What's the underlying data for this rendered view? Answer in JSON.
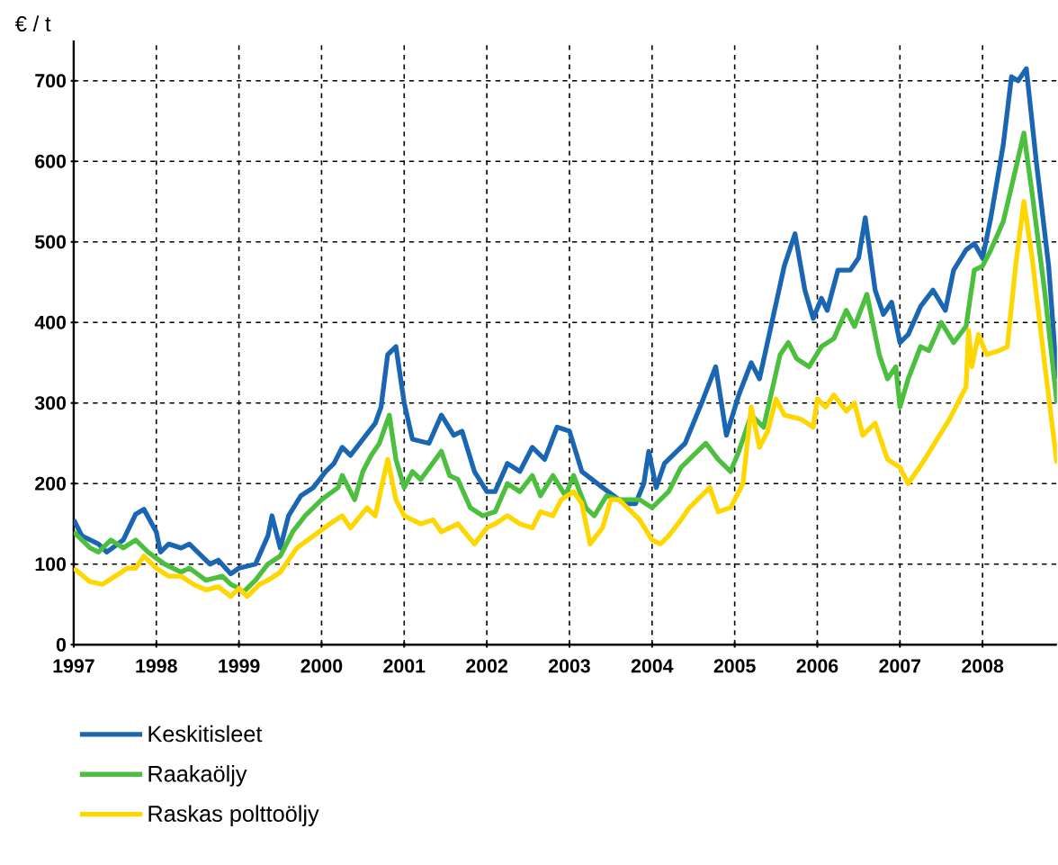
{
  "chart_data": {
    "type": "line",
    "ylabel": "€ / t",
    "xlim": [
      1997,
      2008.9
    ],
    "ylim": [
      0,
      750
    ],
    "xticks": [
      1997,
      1998,
      1999,
      2000,
      2001,
      2002,
      2003,
      2004,
      2005,
      2006,
      2007,
      2008
    ],
    "yticks": [
      0,
      100,
      200,
      300,
      400,
      500,
      600,
      700
    ],
    "grid": true,
    "legend": "bottom",
    "marker": "none",
    "line_style": "solid",
    "series": [
      {
        "name": "Keskitisleet",
        "color": "#1a66b3",
        "x": [
          1997.0,
          1997.1,
          1997.3,
          1997.4,
          1997.6,
          1997.75,
          1997.85,
          1998.0,
          1998.05,
          1998.15,
          1998.3,
          1998.4,
          1998.55,
          1998.65,
          1998.75,
          1998.9,
          1999.0,
          1999.2,
          1999.35,
          1999.4,
          1999.5,
          1999.6,
          1999.75,
          1999.9,
          2000.05,
          2000.15,
          2000.25,
          2000.35,
          2000.5,
          2000.65,
          2000.72,
          2000.8,
          2000.9,
          2001.0,
          2001.1,
          2001.3,
          2001.45,
          2001.6,
          2001.7,
          2001.85,
          2002.0,
          2002.1,
          2002.25,
          2002.4,
          2002.55,
          2002.7,
          2002.85,
          2003.0,
          2003.15,
          2003.4,
          2003.6,
          2003.7,
          2003.8,
          2003.9,
          2003.96,
          2004.05,
          2004.15,
          2004.3,
          2004.4,
          2004.6,
          2004.77,
          2004.9,
          2005.05,
          2005.2,
          2005.3,
          2005.45,
          2005.6,
          2005.73,
          2005.85,
          2005.95,
          2006.05,
          2006.12,
          2006.25,
          2006.4,
          2006.5,
          2006.58,
          2006.7,
          2006.8,
          2006.9,
          2007.0,
          2007.1,
          2007.25,
          2007.4,
          2007.55,
          2007.65,
          2007.8,
          2007.9,
          2008.0,
          2008.1,
          2008.25,
          2008.35,
          2008.43,
          2008.53,
          2008.65,
          2008.8,
          2008.9
        ],
        "values": [
          155,
          135,
          125,
          115,
          130,
          162,
          168,
          140,
          115,
          125,
          120,
          125,
          110,
          100,
          105,
          88,
          95,
          100,
          135,
          160,
          120,
          160,
          185,
          195,
          215,
          225,
          245,
          235,
          255,
          275,
          295,
          360,
          370,
          300,
          255,
          250,
          285,
          260,
          265,
          215,
          190,
          190,
          225,
          215,
          245,
          230,
          270,
          265,
          215,
          195,
          180,
          175,
          175,
          200,
          240,
          195,
          225,
          240,
          250,
          300,
          345,
          260,
          310,
          350,
          330,
          400,
          470,
          510,
          440,
          405,
          430,
          415,
          465,
          465,
          480,
          530,
          440,
          410,
          425,
          375,
          385,
          420,
          440,
          415,
          465,
          490,
          498,
          480,
          530,
          620,
          705,
          700,
          715,
          600,
          470,
          330
        ]
      },
      {
        "name": "Raakaöljy",
        "color": "#4cbf3f",
        "x": [
          1997.0,
          1997.2,
          1997.3,
          1997.45,
          1997.6,
          1997.75,
          1997.9,
          1998.1,
          1998.3,
          1998.4,
          1998.6,
          1998.8,
          1998.9,
          1999.0,
          1999.05,
          1999.2,
          1999.35,
          1999.5,
          1999.65,
          1999.8,
          2000.0,
          2000.2,
          2000.25,
          2000.4,
          2000.5,
          2000.6,
          2000.7,
          2000.82,
          2000.9,
          2001.0,
          2001.1,
          2001.2,
          2001.45,
          2001.55,
          2001.65,
          2001.8,
          2001.95,
          2002.1,
          2002.25,
          2002.4,
          2002.55,
          2002.65,
          2002.8,
          2002.95,
          2003.05,
          2003.2,
          2003.3,
          2003.45,
          2003.6,
          2003.85,
          2004.0,
          2004.2,
          2004.35,
          2004.5,
          2004.65,
          2004.8,
          2004.95,
          2005.05,
          2005.2,
          2005.35,
          2005.55,
          2005.65,
          2005.75,
          2005.9,
          2006.05,
          2006.2,
          2006.35,
          2006.45,
          2006.6,
          2006.75,
          2006.85,
          2006.95,
          2007.0,
          2007.1,
          2007.25,
          2007.35,
          2007.5,
          2007.65,
          2007.8,
          2007.9,
          2008.0,
          2008.1,
          2008.25,
          2008.4,
          2008.5,
          2008.6,
          2008.75,
          2008.9
        ],
        "values": [
          140,
          120,
          115,
          130,
          120,
          130,
          115,
          100,
          90,
          95,
          80,
          85,
          75,
          70,
          65,
          80,
          100,
          110,
          140,
          160,
          180,
          195,
          210,
          180,
          215,
          235,
          250,
          285,
          230,
          195,
          215,
          205,
          240,
          210,
          205,
          170,
          160,
          165,
          200,
          190,
          210,
          185,
          210,
          185,
          210,
          170,
          160,
          185,
          180,
          180,
          170,
          190,
          220,
          235,
          250,
          230,
          215,
          240,
          285,
          270,
          360,
          375,
          355,
          345,
          370,
          380,
          415,
          395,
          435,
          360,
          330,
          345,
          295,
          330,
          370,
          365,
          400,
          375,
          395,
          465,
          470,
          490,
          525,
          590,
          635,
          560,
          440,
          300
        ]
      },
      {
        "name": "Raskas polttoöljy",
        "color": "#ffd700",
        "x": [
          1997.0,
          1997.2,
          1997.35,
          1997.5,
          1997.65,
          1997.75,
          1997.85,
          1998.0,
          1998.15,
          1998.3,
          1998.45,
          1998.6,
          1998.75,
          1998.9,
          1999.0,
          1999.1,
          1999.25,
          1999.35,
          1999.5,
          1999.7,
          1999.9,
          2000.1,
          2000.25,
          2000.35,
          2000.55,
          2000.65,
          2000.8,
          2000.9,
          2001.0,
          2001.2,
          2001.35,
          2001.45,
          2001.65,
          2001.85,
          2002.0,
          2002.1,
          2002.25,
          2002.4,
          2002.55,
          2002.65,
          2002.8,
          2002.9,
          2003.05,
          2003.15,
          2003.25,
          2003.4,
          2003.5,
          2003.6,
          2003.85,
          2004.0,
          2004.1,
          2004.2,
          2004.35,
          2004.45,
          2004.6,
          2004.7,
          2004.8,
          2004.95,
          2005.1,
          2005.2,
          2005.3,
          2005.4,
          2005.5,
          2005.6,
          2005.8,
          2005.95,
          2006.0,
          2006.1,
          2006.2,
          2006.35,
          2006.45,
          2006.55,
          2006.7,
          2006.85,
          2007.0,
          2007.1,
          2007.3,
          2007.6,
          2007.8,
          2007.83,
          2007.87,
          2007.95,
          2008.05,
          2008.2,
          2008.3,
          2008.4,
          2008.5,
          2008.6,
          2008.75,
          2008.9
        ],
        "values": [
          95,
          78,
          75,
          85,
          95,
          95,
          110,
          95,
          85,
          85,
          75,
          68,
          72,
          60,
          70,
          60,
          75,
          80,
          90,
          120,
          135,
          150,
          160,
          145,
          170,
          160,
          230,
          180,
          160,
          150,
          155,
          140,
          150,
          125,
          145,
          150,
          160,
          150,
          145,
          165,
          160,
          180,
          190,
          175,
          125,
          145,
          180,
          180,
          155,
          130,
          125,
          135,
          155,
          170,
          185,
          195,
          165,
          170,
          200,
          295,
          245,
          265,
          305,
          285,
          280,
          270,
          305,
          295,
          310,
          290,
          300,
          260,
          275,
          230,
          220,
          200,
          230,
          280,
          320,
          390,
          345,
          385,
          360,
          365,
          370,
          470,
          550,
          480,
          350,
          225
        ]
      }
    ]
  }
}
